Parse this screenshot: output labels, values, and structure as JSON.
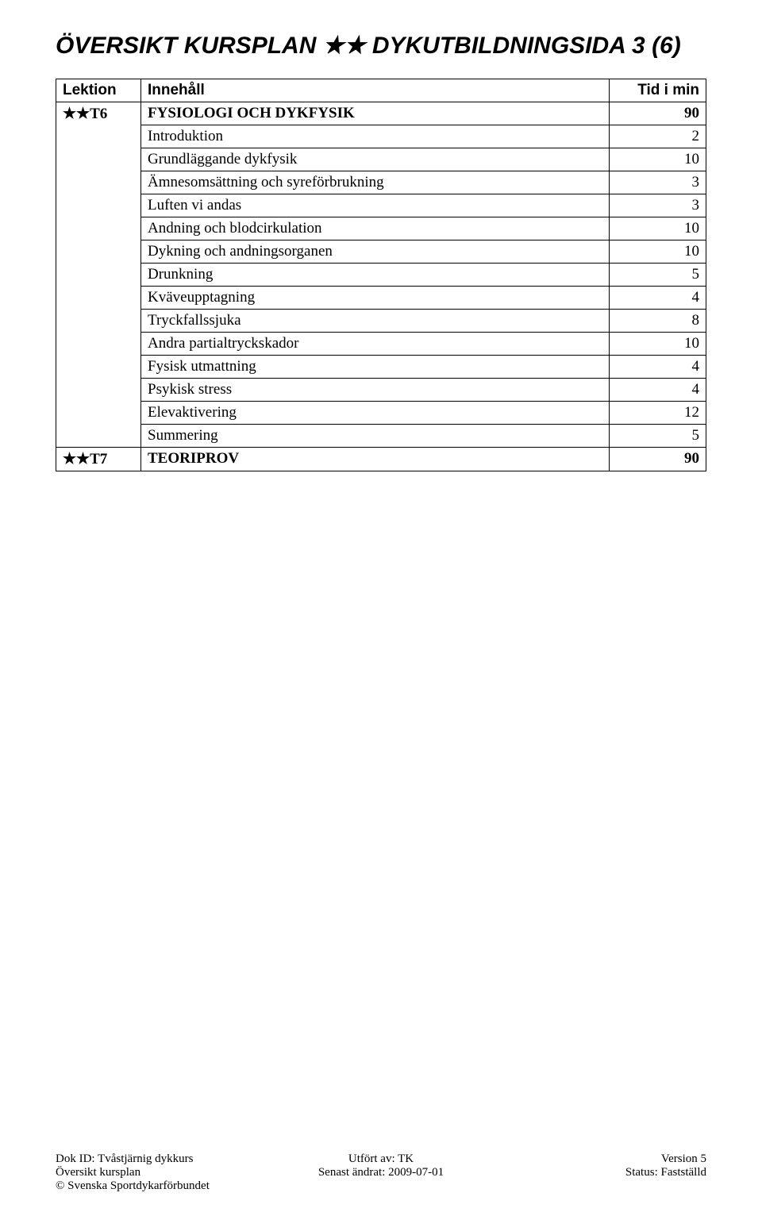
{
  "title_prefix": "ÖVERSIKT KURSPLAN ",
  "title_suffix": " DYKUTBILDNINGSIDA 3 (6)",
  "stars": "★★",
  "headers": {
    "lektion": "Lektion",
    "innehall": "Innehåll",
    "tid": "Tid i min"
  },
  "row_t6": {
    "lektion_stars": "★★",
    "lektion_code": "T6",
    "section_title": "FYSIOLOGI OCH DYKFYSIK",
    "section_value": "90",
    "items": [
      {
        "label": "Introduktion",
        "value": "2"
      },
      {
        "label": "Grundläggande dykfysik",
        "value": "10"
      },
      {
        "label": "Ämnesomsättning och syreförbrukning",
        "value": "3"
      },
      {
        "label": "Luften vi andas",
        "value": "3"
      },
      {
        "label": "Andning och blodcirkulation",
        "value": "10"
      },
      {
        "label": "Dykning och andningsorganen",
        "value": "10"
      },
      {
        "label": "Drunkning",
        "value": "5"
      },
      {
        "label": "Kväveupptagning",
        "value": "4"
      },
      {
        "label": "Tryckfallssjuka",
        "value": "8"
      },
      {
        "label": "Andra partialtryckskador",
        "value": "10"
      },
      {
        "label": "Fysisk utmattning",
        "value": "4"
      },
      {
        "label": "Psykisk stress",
        "value": "4"
      },
      {
        "label": "Elevaktivering",
        "value": "12"
      },
      {
        "label": "Summering",
        "value": "5"
      }
    ]
  },
  "row_t7": {
    "lektion_stars": "★★",
    "lektion_code": "T7",
    "section_title": "TEORIPROV",
    "section_value": "90"
  },
  "footer": {
    "dok_id": "Dok ID: Tvåstjärnig dykkurs",
    "utfort_av": "Utfört av: TK",
    "version": "Version 5",
    "oversikt": "Översikt kursplan",
    "senast_andrat": "Senast ändrat: 2009-07-01",
    "status": "Status: Fastställd",
    "copyright": "© Svenska Sportdykarförbundet"
  }
}
